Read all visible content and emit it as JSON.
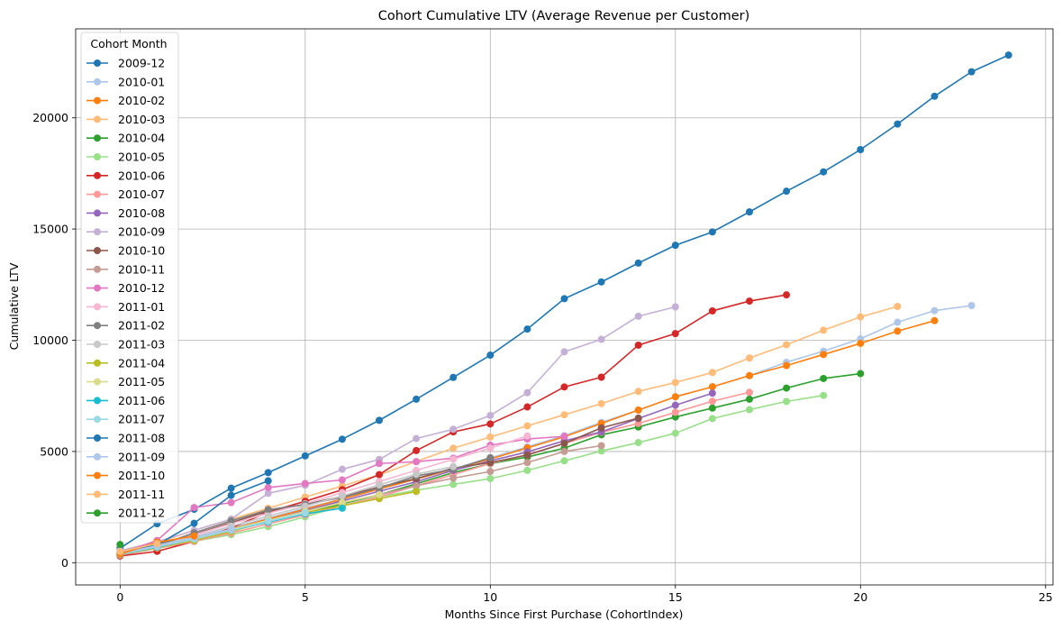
{
  "chart_data": {
    "type": "line",
    "title": "Cohort Cumulative LTV (Average Revenue per Customer)",
    "xlabel": "Months Since First Purchase (CohortIndex)",
    "ylabel": "Cumulative LTV",
    "xlim": [
      -1.2,
      25.2
    ],
    "ylim": [
      -1000,
      24000
    ],
    "xticks": [
      0,
      5,
      10,
      15,
      20,
      25
    ],
    "yticks": [
      0,
      5000,
      10000,
      15000,
      20000
    ],
    "grid": true,
    "marker": "circle",
    "legend": {
      "title": "Cohort Month",
      "placement": "upper-left"
    },
    "series": [
      {
        "name": "2009-12",
        "color": "#1f77b4",
        "values": [
          650,
          1750,
          2400,
          3350,
          4050,
          4800,
          5550,
          6400,
          7350,
          8330,
          9330,
          10500,
          11870,
          12620,
          13470,
          14270,
          14870,
          15770,
          16700,
          17570,
          18570,
          19720,
          20970,
          22070,
          22820
        ]
      },
      {
        "name": "2010-01",
        "color": "#aec7e8",
        "values": [
          420,
          760,
          1120,
          1560,
          2010,
          2460,
          2860,
          3310,
          3760,
          4210,
          4710,
          5210,
          5710,
          6310,
          6860,
          7460,
          7910,
          8410,
          9010,
          9510,
          10060,
          10810,
          11330,
          11560
        ]
      },
      {
        "name": "2010-02",
        "color": "#ff7f0e",
        "values": [
          380,
          720,
          1060,
          1510,
          1960,
          2410,
          2860,
          3310,
          3760,
          4210,
          4660,
          5160,
          5660,
          6260,
          6860,
          7460,
          7910,
          8410,
          8860,
          9360,
          9860,
          10410,
          10880
        ]
      },
      {
        "name": "2010-03",
        "color": "#ffbb78",
        "values": [
          440,
          900,
          1450,
          1950,
          2450,
          2950,
          3450,
          3950,
          4550,
          5150,
          5650,
          6150,
          6650,
          7150,
          7700,
          8100,
          8550,
          9200,
          9800,
          10450,
          11050,
          11520
        ]
      },
      {
        "name": "2010-04",
        "color": "#2ca02c",
        "values": [
          370,
          700,
          1020,
          1430,
          1850,
          2250,
          2650,
          3050,
          3550,
          4050,
          4450,
          4750,
          5150,
          5750,
          6100,
          6550,
          6950,
          7350,
          7850,
          8280,
          8500
        ]
      },
      {
        "name": "2010-05",
        "color": "#98df8a",
        "values": [
          350,
          640,
          960,
          1260,
          1620,
          2060,
          2560,
          2960,
          3260,
          3520,
          3780,
          4150,
          4580,
          5020,
          5400,
          5820,
          6480,
          6880,
          7250,
          7520
        ]
      },
      {
        "name": "2010-06",
        "color": "#d62728",
        "values": [
          300,
          510,
          960,
          1560,
          2280,
          2760,
          3280,
          3960,
          5040,
          5880,
          6240,
          7000,
          7900,
          8340,
          9780,
          10300,
          11320,
          11760,
          12040
        ]
      },
      {
        "name": "2010-07",
        "color": "#ff9896",
        "values": [
          340,
          660,
          960,
          1330,
          1740,
          2150,
          2560,
          2960,
          3460,
          3960,
          4460,
          4860,
          5360,
          5860,
          6260,
          6760,
          7260,
          7660
        ]
      },
      {
        "name": "2010-08",
        "color": "#9467bd",
        "values": [
          380,
          720,
          1050,
          1470,
          1900,
          2340,
          2780,
          3210,
          3640,
          4150,
          4580,
          4980,
          5480,
          5880,
          6480,
          7080,
          7620
        ]
      },
      {
        "name": "2010-09",
        "color": "#c5b0d5",
        "values": [
          540,
          940,
          1450,
          1960,
          3120,
          3480,
          4200,
          4640,
          5580,
          6000,
          6620,
          7640,
          9480,
          10040,
          11080,
          11500
        ]
      },
      {
        "name": "2010-10",
        "color": "#8c564b",
        "values": [
          420,
          820,
          1270,
          1800,
          2320,
          2620,
          2980,
          3400,
          3780,
          4250,
          4500,
          4840,
          5360,
          6060,
          6500
        ]
      },
      {
        "name": "2010-11",
        "color": "#c49c94",
        "values": [
          380,
          740,
          1120,
          1500,
          1900,
          2300,
          2700,
          3060,
          3460,
          3800,
          4100,
          4500,
          5000,
          5260
        ]
      },
      {
        "name": "2010-12",
        "color": "#e377c2",
        "values": [
          430,
          1000,
          2480,
          2700,
          3380,
          3560,
          3720,
          4460,
          4540,
          4700,
          5280,
          5560,
          5680
        ]
      },
      {
        "name": "2011-01",
        "color": "#f7b6d2",
        "values": [
          420,
          790,
          1250,
          1750,
          2220,
          2650,
          3150,
          3650,
          4150,
          4650,
          5150,
          5700
        ]
      },
      {
        "name": "2011-02",
        "color": "#7f7f7f",
        "values": [
          400,
          760,
          1340,
          1880,
          2380,
          2620,
          2930,
          3360,
          3900,
          4200,
          4720
        ]
      },
      {
        "name": "2011-03",
        "color": "#c7c7c7",
        "values": [
          410,
          760,
          1180,
          1640,
          2100,
          2540,
          3000,
          3500,
          3980,
          4320
        ]
      },
      {
        "name": "2011-04",
        "color": "#bcbd22",
        "values": [
          360,
          680,
          1000,
          1400,
          1860,
          2260,
          2560,
          2880,
          3200
        ]
      },
      {
        "name": "2011-05",
        "color": "#dbdb8d",
        "values": [
          400,
          760,
          1100,
          1500,
          1900,
          2300,
          2700,
          3060
        ]
      },
      {
        "name": "2011-06",
        "color": "#17becf",
        "values": [
          370,
          700,
          1060,
          1460,
          1820,
          2200,
          2450
        ]
      },
      {
        "name": "2011-07",
        "color": "#9edae5",
        "values": [
          380,
          720,
          1060,
          1460,
          1860,
          2240
        ]
      },
      {
        "name": "2011-08",
        "color": "#1f77b4",
        "values": [
          420,
          800,
          1770,
          3030,
          3680
        ]
      },
      {
        "name": "2011-09",
        "color": "#aec7e8",
        "values": [
          420,
          760,
          1120,
          1500
        ]
      },
      {
        "name": "2011-10",
        "color": "#ff7f0e",
        "values": [
          390,
          920,
          1200
        ]
      },
      {
        "name": "2011-11",
        "color": "#ffbb78",
        "values": [
          500,
          860
        ]
      },
      {
        "name": "2011-12",
        "color": "#2ca02c",
        "values": [
          820
        ]
      }
    ]
  }
}
